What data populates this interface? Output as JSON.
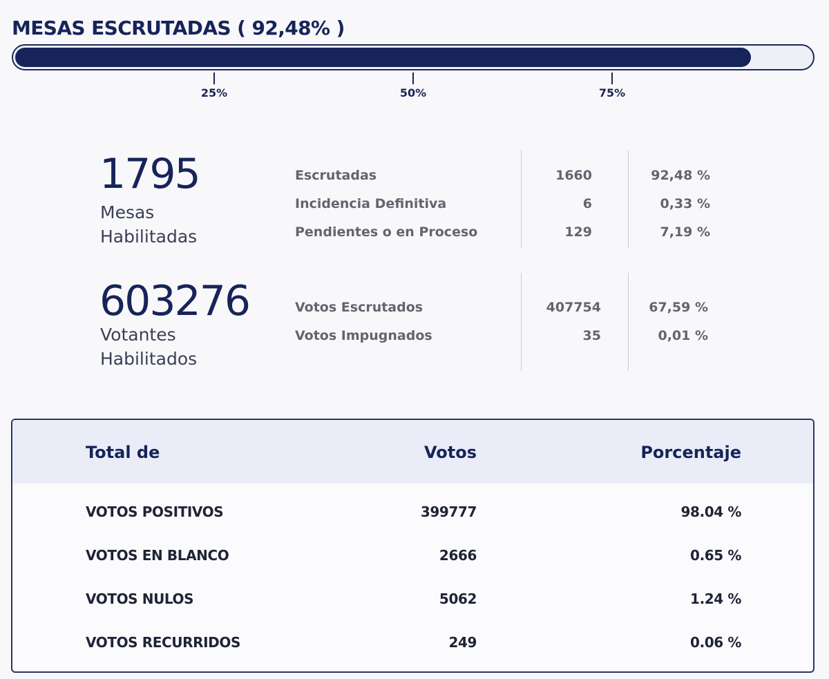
{
  "progress": {
    "title": "MESAS ESCRUTADAS ( 92,48% )",
    "fraction": 0.9248,
    "ticks": [
      "25%",
      "50%",
      "75%"
    ]
  },
  "mesas": {
    "total": "1795",
    "label_line1": "Mesas",
    "label_line2": "Habilitadas",
    "rows": [
      {
        "label": "Escrutadas",
        "count": "1660",
        "pct": "92,48 %"
      },
      {
        "label": "Incidencia Definitiva",
        "count": "6",
        "pct": "0,33 %"
      },
      {
        "label": "Pendientes o en Proceso",
        "count": "129",
        "pct": "7,19 %"
      }
    ]
  },
  "votantes": {
    "total": "603276",
    "label_line1": "Votantes",
    "label_line2": "Habilitados",
    "rows": [
      {
        "label": "Votos Escrutados",
        "count": "407754",
        "pct": "67,59 %"
      },
      {
        "label": "Votos Impugnados",
        "count": "35",
        "pct": "0,01 %"
      }
    ]
  },
  "totals_table": {
    "headers": {
      "category": "Total de",
      "votes": "Votos",
      "percentage": "Porcentaje"
    },
    "rows": [
      {
        "category": "VOTOS POSITIVOS",
        "votes": "399777",
        "percentage": "98.04 %"
      },
      {
        "category": "VOTOS EN BLANCO",
        "votes": "2666",
        "percentage": "0.65 %"
      },
      {
        "category": "VOTOS NULOS",
        "votes": "5062",
        "percentage": "1.24 %"
      },
      {
        "category": "VOTOS RECURRIDOS",
        "votes": "249",
        "percentage": "0.06 %"
      }
    ]
  }
}
